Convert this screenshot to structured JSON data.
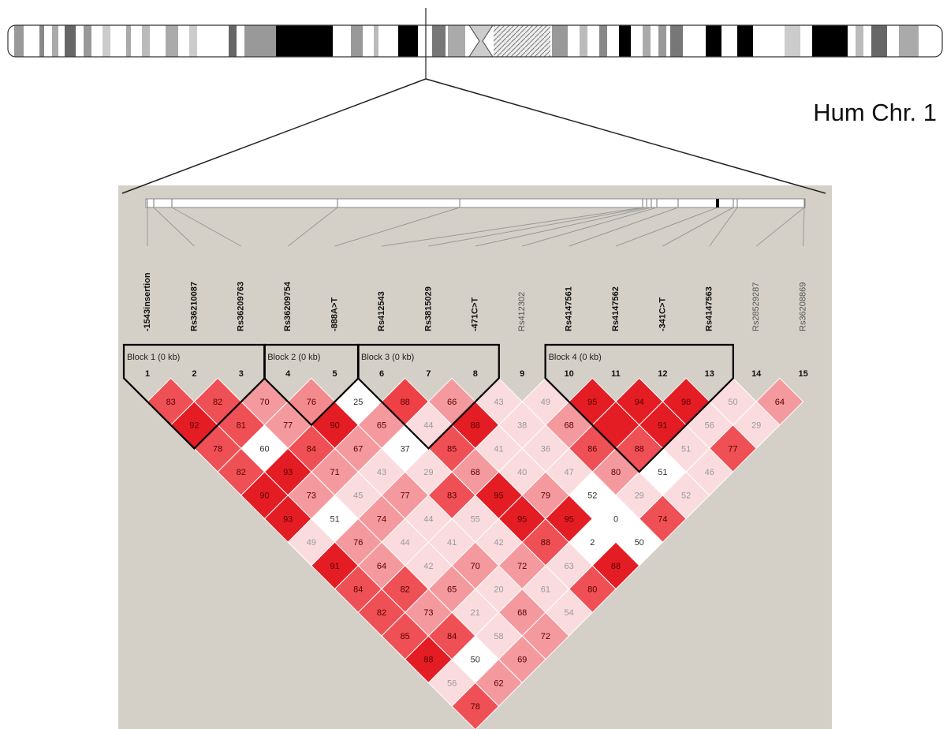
{
  "title": "Hum Chr. 1",
  "markers": [
    {
      "name": "-1543insertion",
      "bold": true
    },
    {
      "name": "Rs36210087",
      "bold": true
    },
    {
      "name": "Rs36209763",
      "bold": true
    },
    {
      "name": "Rs36209754",
      "bold": true
    },
    {
      "name": "-888A>T",
      "bold": true
    },
    {
      "name": "Rs412543",
      "bold": true
    },
    {
      "name": "Rs3815029",
      "bold": true
    },
    {
      "name": "-471C>T",
      "bold": true
    },
    {
      "name": "Rs412302",
      "bold": false
    },
    {
      "name": "Rs4147561",
      "bold": true
    },
    {
      "name": "Rs4147562",
      "bold": true
    },
    {
      "name": "-341C>T",
      "bold": true
    },
    {
      "name": "Rs4147563",
      "bold": true
    },
    {
      "name": "Rs28529287",
      "bold": false
    },
    {
      "name": "Rs36208869",
      "bold": false
    }
  ],
  "marker_numbers": [
    1,
    2,
    3,
    4,
    5,
    6,
    7,
    8,
    9,
    10,
    11,
    12,
    13,
    14,
    15
  ],
  "blocks": [
    {
      "label": "Block 1 (0 kb)",
      "first": 1,
      "last": 3
    },
    {
      "label": "Block 2 (0 kb)",
      "first": 4,
      "last": 5
    },
    {
      "label": "Block 3 (0 kb)",
      "first": 6,
      "last": 8
    },
    {
      "label": "Block 4 (0 kb)",
      "first": 10,
      "last": 13
    }
  ],
  "ld": {
    "rows": [
      {
        "values": [
          83,
          82,
          70,
          76,
          25,
          88,
          66,
          43,
          49,
          95,
          94,
          98,
          50,
          64
        ],
        "colors": [
          "#ef5055",
          "#ef5055",
          "#f49a9e",
          "#f28a8e",
          "#ffffff",
          "#ef4046",
          "#f49a9e",
          "#fbdcde",
          "#fbdcde",
          "#e41c23",
          "#e41c23",
          "#e41c23",
          "#fbdcde",
          "#f49a9e"
        ]
      },
      {
        "values": [
          92,
          81,
          77,
          90,
          65,
          44,
          88,
          38,
          68,
          null,
          91,
          56,
          29
        ],
        "colors": [
          "#e41c23",
          "#ef5055",
          "#f49a9e",
          "#e41c23",
          "#f49a9e",
          "#fbdcde",
          "#e41c23",
          "#fbdcde",
          "#f49a9e",
          "#e41c23",
          "#e41c23",
          "#fbdcde",
          "#fbdcde"
        ]
      },
      {
        "values": [
          78,
          60,
          84,
          67,
          37,
          85,
          41,
          36,
          86,
          88,
          51,
          77
        ],
        "colors": [
          "#ef5055",
          "#ffffff",
          "#ef5055",
          "#f49a9e",
          "#ffffff",
          "#ef5055",
          "#fbdcde",
          "#fbdcde",
          "#ef5055",
          "#ef5055",
          "#fbdcde",
          "#ef5055"
        ]
      },
      {
        "values": [
          82,
          93,
          71,
          43,
          29,
          68,
          40,
          47,
          80,
          51,
          46
        ],
        "colors": [
          "#ef5055",
          "#e41c23",
          "#f49a9e",
          "#fbdcde",
          "#fbdcde",
          "#f49a9e",
          "#fbdcde",
          "#fbdcde",
          "#f49a9e",
          "#ffffff",
          "#fbdcde"
        ]
      },
      {
        "values": [
          90,
          73,
          45,
          77,
          83,
          95,
          79,
          52,
          29,
          52
        ],
        "colors": [
          "#e41c23",
          "#f49a9e",
          "#fbdcde",
          "#f49a9e",
          "#ef5055",
          "#e41c23",
          "#f49a9e",
          "#ffffff",
          "#fbdcde",
          "#fbdcde"
        ]
      },
      {
        "values": [
          93,
          51,
          74,
          44,
          55,
          95,
          95,
          0,
          74
        ],
        "colors": [
          "#e41c23",
          "#ffffff",
          "#f49a9e",
          "#fbdcde",
          "#fbdcde",
          "#e41c23",
          "#e41c23",
          "#ffffff",
          "#ef5055"
        ]
      },
      {
        "values": [
          49,
          76,
          44,
          41,
          42,
          88,
          2,
          50
        ],
        "colors": [
          "#fbdcde",
          "#f49a9e",
          "#fbdcde",
          "#fbdcde",
          "#fbdcde",
          "#ef5055",
          "#ffffff",
          "#ffffff"
        ]
      },
      {
        "values": [
          91,
          64,
          42,
          70,
          72,
          63,
          88
        ],
        "colors": [
          "#e41c23",
          "#f49a9e",
          "#fbdcde",
          "#f49a9e",
          "#f49a9e",
          "#fbdcde",
          "#e41c23"
        ]
      },
      {
        "values": [
          84,
          82,
          65,
          20,
          61,
          80
        ],
        "colors": [
          "#ef5055",
          "#ef5055",
          "#f49a9e",
          "#fbdcde",
          "#fbdcde",
          "#ef5055"
        ]
      },
      {
        "values": [
          82,
          73,
          21,
          68,
          54
        ],
        "colors": [
          "#ef5055",
          "#f49a9e",
          "#fbdcde",
          "#f49a9e",
          "#fbdcde"
        ]
      },
      {
        "values": [
          85,
          84,
          58,
          72
        ],
        "colors": [
          "#ef5055",
          "#ef5055",
          "#fbdcde",
          "#f49a9e"
        ]
      },
      {
        "values": [
          88,
          50,
          69
        ],
        "colors": [
          "#e41c23",
          "#ffffff",
          "#f49a9e"
        ]
      },
      {
        "values": [
          56,
          62
        ],
        "colors": [
          "#fbdcde",
          "#f49a9e"
        ]
      },
      {
        "values": [
          78
        ],
        "colors": [
          "#ef5055"
        ]
      }
    ]
  }
}
